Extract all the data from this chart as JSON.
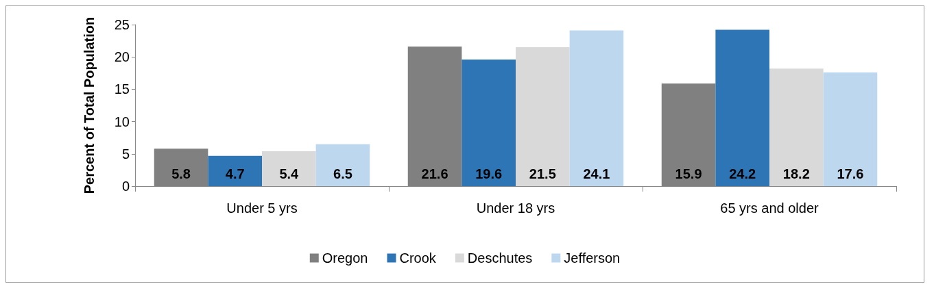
{
  "chart_data": {
    "type": "bar",
    "ylabel": "Percent of Total Population",
    "categories": [
      "Under 5 yrs",
      "Under 18 yrs",
      "65 yrs and older"
    ],
    "series": [
      {
        "name": "Oregon",
        "color": "#808080",
        "values": [
          5.8,
          21.6,
          15.9
        ]
      },
      {
        "name": "Crook",
        "color": "#2e75b6",
        "values": [
          4.7,
          19.6,
          24.2
        ]
      },
      {
        "name": "Deschutes",
        "color": "#d9d9d9",
        "values": [
          5.4,
          21.5,
          18.2
        ]
      },
      {
        "name": "Jefferson",
        "color": "#bdd7ee",
        "values": [
          6.5,
          24.1,
          17.6
        ]
      }
    ],
    "ylim": [
      0,
      25
    ],
    "yticks": [
      0,
      5,
      10,
      15,
      20,
      25
    ],
    "grid": false,
    "legend": "bottom",
    "data_labels": true
  }
}
